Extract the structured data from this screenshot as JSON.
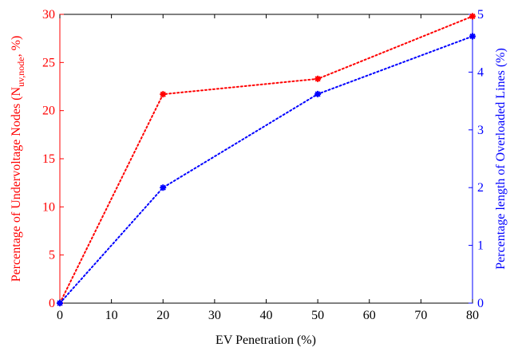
{
  "chart_data": {
    "type": "line",
    "x": [
      0,
      20,
      50,
      80
    ],
    "xlabel": "EV Penetration (%)",
    "xlim": [
      0,
      80
    ],
    "xticks": [
      0,
      10,
      20,
      30,
      40,
      50,
      60,
      70,
      80
    ],
    "grid": false,
    "legend": "none",
    "axes": {
      "left": {
        "label_prefix": "Percentage of Undervoltage Nodes (N",
        "label_subscript": "uv,node",
        "label_suffix": ", %)",
        "ylim": [
          0,
          30
        ],
        "ticks": [
          0,
          5,
          10,
          15,
          20,
          25,
          30
        ],
        "color": "#ff0000"
      },
      "right": {
        "label": "Percentage length of Overloaded Lines (%)",
        "ylim": [
          0,
          5
        ],
        "ticks": [
          0,
          1,
          2,
          3,
          4,
          5
        ],
        "color": "#0000ff"
      }
    },
    "series": [
      {
        "axis": "left",
        "values": [
          0,
          21.7,
          23.3,
          29.8
        ],
        "color": "#ff0000",
        "line_style": "dotted",
        "marker": "asterisk"
      },
      {
        "axis": "right",
        "values": [
          0,
          2.0,
          3.62,
          4.62
        ],
        "color": "#0000ff",
        "line_style": "dotted",
        "marker": "asterisk"
      }
    ]
  }
}
